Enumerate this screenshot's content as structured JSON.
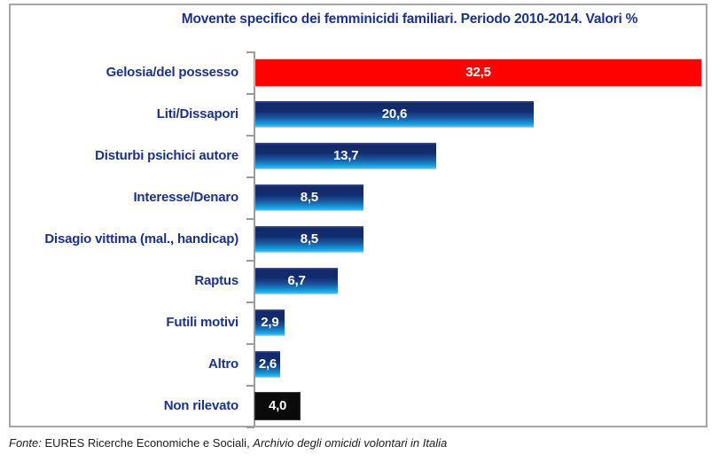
{
  "chart_data": {
    "type": "bar",
    "orientation": "horizontal",
    "title": "Movente specifico dei femminicidi familiari. Periodo 2010-2014. Valori %",
    "xlabel": "",
    "ylabel": "",
    "xlim": [
      0,
      33.5
    ],
    "grid": false,
    "legend": "none",
    "categories": [
      "Gelosia/del possesso",
      "Liti/Dissapori",
      "Disturbi psichici autore",
      "Interesse/Denaro",
      "Disagio vittima (mal., handicap)",
      "Raptus",
      "Futili motivi",
      "Altro",
      "Non rilevato"
    ],
    "values": [
      32.5,
      20.6,
      13.7,
      8.5,
      8.5,
      6.7,
      2.9,
      2.6,
      4.0
    ],
    "value_labels": [
      "32,5",
      "20,6",
      "13,7",
      "8,5",
      "8,5",
      "6,7",
      "2,9",
      "2,6",
      "4,0"
    ],
    "bar_styles": [
      "red",
      "blue",
      "blue",
      "blue",
      "blue",
      "blue",
      "blue",
      "blue",
      "black"
    ]
  },
  "colors": {
    "red_bar": "#fe0101",
    "blue_bar_top": "#13286a",
    "blue_bar_bottom": "#12a0e2",
    "black_bar": "#0a0a0a",
    "navy_text": "#1b3287",
    "axis_gray": "#9b9b9b",
    "frame_gray": "#a6a6a6"
  },
  "footer": {
    "parts": [
      {
        "text": "Fonte:",
        "italic": true
      },
      {
        "text": " EURES Ricerche Economiche e Sociali, ",
        "italic": false
      },
      {
        "text": "Archivio degli omicidi volontari in Italia",
        "italic": true
      }
    ]
  }
}
